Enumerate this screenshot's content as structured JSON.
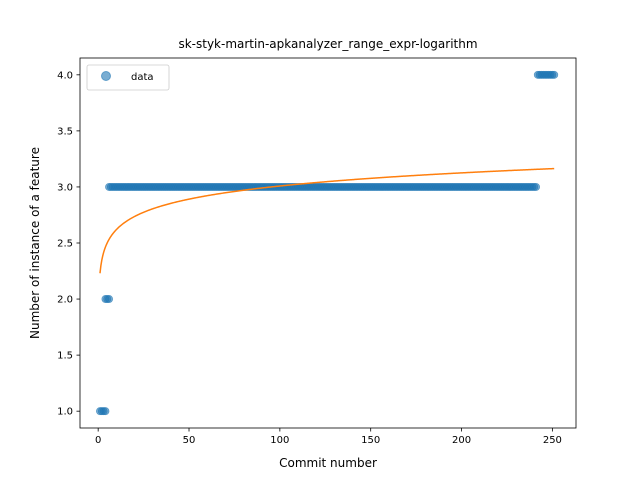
{
  "chart_data": {
    "type": "scatter",
    "title": "sk-styk-martin-apkanalyzer_range_expr-logarithm",
    "xlabel": "Commit number",
    "ylabel": "Number of instance of a feature",
    "xlim": [
      -10,
      263
    ],
    "ylim": [
      0.85,
      4.15
    ],
    "xticks": [
      0,
      50,
      100,
      150,
      200,
      250
    ],
    "xtick_labels": [
      "0",
      "50",
      "100",
      "150",
      "200",
      "250"
    ],
    "yticks": [
      1.0,
      1.5,
      2.0,
      2.5,
      3.0,
      3.5,
      4.0
    ],
    "ytick_labels": [
      "1.0",
      "1.5",
      "2.0",
      "2.5",
      "3.0",
      "3.5",
      "4.0"
    ],
    "grid": false,
    "legend": {
      "position": "top-left",
      "entries": [
        {
          "label": "data",
          "color": "#1f77b4"
        }
      ]
    },
    "series": [
      {
        "name": "data",
        "kind": "scatter",
        "color": "#1f77b4",
        "segments": [
          {
            "x_from": 1,
            "x_to": 4,
            "y": 1
          },
          {
            "x_from": 4,
            "x_to": 6,
            "y": 2
          },
          {
            "x_from": 6,
            "x_to": 241,
            "y": 3
          },
          {
            "x_from": 242,
            "x_to": 251,
            "y": 4
          }
        ]
      },
      {
        "name": "",
        "kind": "line",
        "color": "#ff7f0e",
        "fit": {
          "model": "logarithmic",
          "a": 2.23,
          "b": 0.169,
          "x_from": 1,
          "x_to": 251
        }
      }
    ]
  }
}
